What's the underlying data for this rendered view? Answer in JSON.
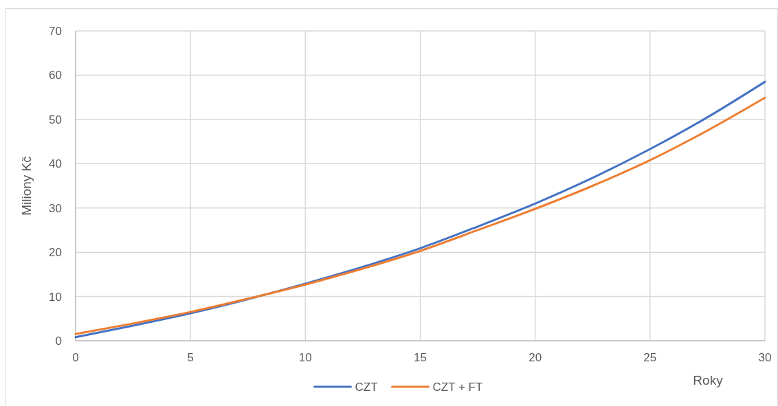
{
  "chart_data": {
    "type": "line",
    "xlabel": "Roky",
    "ylabel": "Miliony Kč",
    "x": [
      0,
      2.5,
      5,
      7.5,
      10,
      12.5,
      15,
      17.5,
      20,
      22.5,
      25,
      27.5,
      30
    ],
    "series": [
      {
        "name": "CZT",
        "color": "#4472c4",
        "values": [
          0.8,
          3.4,
          6.2,
          9.4,
          12.9,
          16.7,
          20.9,
          25.8,
          31.0,
          36.8,
          43.3,
          50.5,
          58.5
        ]
      },
      {
        "name": "CZT + FT",
        "color": "#ed7d31",
        "values": [
          1.5,
          3.9,
          6.5,
          9.5,
          12.7,
          16.3,
          20.3,
          25.0,
          29.8,
          35.0,
          40.8,
          47.5,
          54.9
        ]
      }
    ],
    "xlim": [
      0,
      30
    ],
    "xticks": [
      0,
      5,
      10,
      15,
      20,
      25,
      30
    ],
    "ylim": [
      0,
      70
    ],
    "yticks": [
      0,
      10,
      20,
      30,
      40,
      50,
      60,
      70
    ],
    "grid": true,
    "legend": "bottom",
    "marker": "none",
    "line_style": "solid"
  }
}
